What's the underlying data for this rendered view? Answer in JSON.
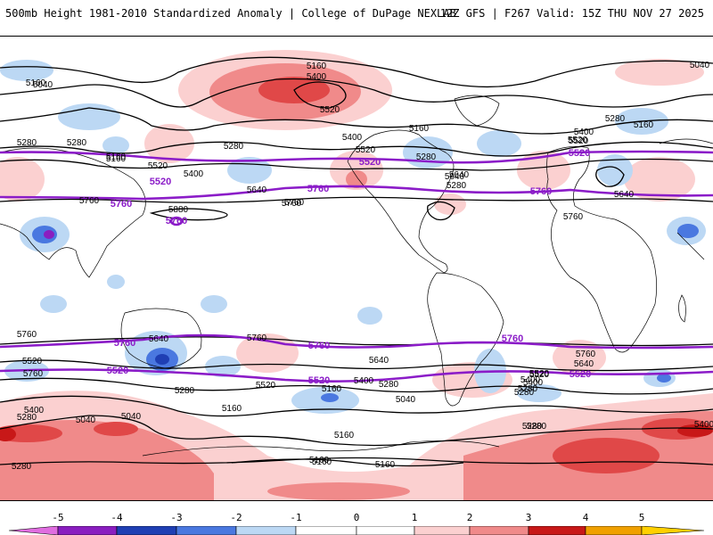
{
  "header": {
    "left_title": "500mb Height 1981-2010 Standardized Anomaly | College of DuPage NEXLAB",
    "right_title": "12Z GFS | F267 Valid: 15Z THU NOV 27 2025"
  },
  "contour_labels": {
    "black": [
      "5160",
      "5040",
      "5400",
      "5520",
      "5160",
      "5280",
      "5400",
      "5520",
      "5400",
      "5520",
      "5280",
      "5640",
      "5760",
      "5040",
      "5280",
      "5160",
      "5400",
      "5520",
      "5280",
      "5160",
      "5640",
      "5760",
      "5640",
      "5520",
      "5280",
      "5160",
      "5280",
      "5040",
      "5160",
      "5760",
      "5880",
      "5760",
      "5640",
      "5760",
      "5640",
      "5520",
      "5400",
      "5280",
      "5160",
      "5040",
      "5160",
      "5280",
      "5400",
      "5520",
      "5640",
      "5760",
      "5520",
      "5400",
      "5280",
      "5040",
      "5160",
      "5280",
      "5160",
      "5160",
      "5280",
      "5400",
      "5280",
      "5160",
      "5280",
      "5640",
      "5760",
      "5760",
      "5520",
      "5400",
      "5280"
    ],
    "purple": [
      "5520",
      "5520",
      "5520",
      "5760",
      "5760",
      "5760",
      "5760",
      "5760",
      "5760",
      "5760",
      "5520",
      "5520",
      "5520"
    ]
  },
  "colorbar": {
    "ticks": [
      "-5",
      "-4",
      "-3",
      "-2",
      "-1",
      "0",
      "1",
      "2",
      "3",
      "4",
      "5"
    ],
    "colors": [
      "#e06de0",
      "#8a1ec0",
      "#1f3fb4",
      "#4a78e0",
      "#bcd8f4",
      "#ffffff",
      "#fbd0d0",
      "#f08a8a",
      "#e04848",
      "#c81818",
      "#f0a000",
      "#ffd000"
    ]
  },
  "map": {
    "lat_lines": "none",
    "coastline_color": "#000000",
    "contour_color": "#000000",
    "highlight_contour_color": "#8b1cc8"
  }
}
